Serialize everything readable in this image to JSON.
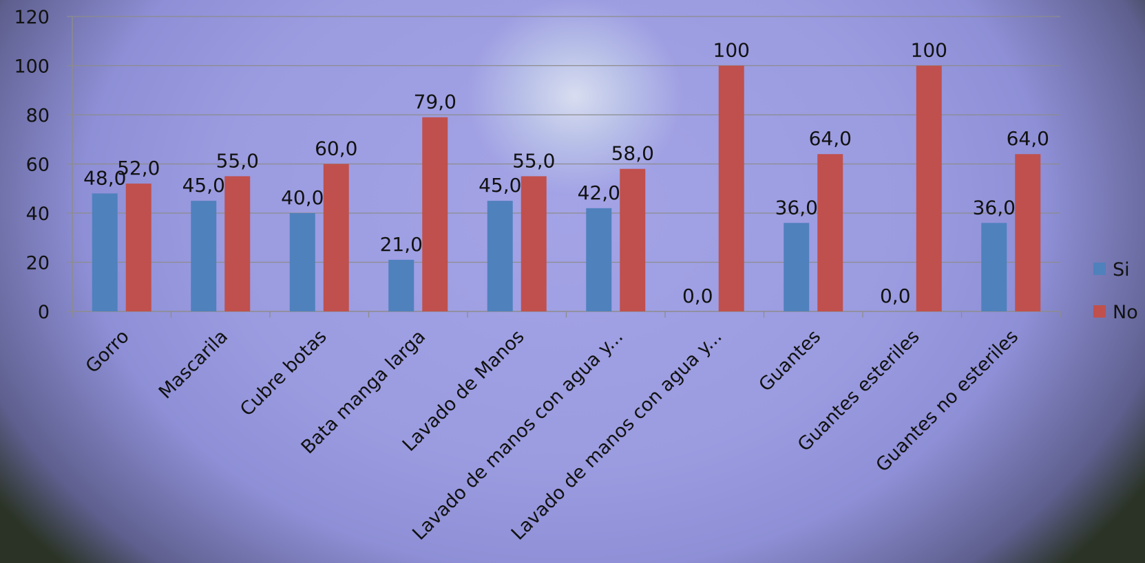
{
  "chart_data": {
    "type": "bar",
    "title": "",
    "xlabel": "",
    "ylabel": "",
    "ylim": [
      0,
      120
    ],
    "yticks": [
      "0",
      "20",
      "40",
      "60",
      "80",
      "100",
      "120"
    ],
    "grid": true,
    "legend_position": "right",
    "categories": [
      "Gorro",
      "Mascarila",
      "Cubre botas",
      "Bata manga larga",
      "Lavado de Manos",
      "Lavado de manos con agua y...",
      "Lavado de manos con agua y...",
      "Guantes",
      "Guantes esteriles",
      "Guantes no esteriles"
    ],
    "series": [
      {
        "name": "Si",
        "color": "#4f81bd",
        "values": [
          48,
          45,
          40,
          21,
          45,
          42,
          0,
          36,
          0,
          36
        ],
        "labels": [
          "48,0",
          "45,0",
          "40,0",
          "21,0",
          "45,0",
          "42,0",
          "0,0",
          "36,0",
          "0,0",
          "36,0"
        ]
      },
      {
        "name": "No",
        "color": "#c0504d",
        "values": [
          52,
          55,
          60,
          79,
          55,
          58,
          100,
          64,
          100,
          64
        ],
        "labels": [
          "52,0",
          "55,0",
          "60,0",
          "79,0",
          "55,0",
          "58,0",
          "100",
          "64,0",
          "100",
          "64,0"
        ]
      }
    ]
  }
}
